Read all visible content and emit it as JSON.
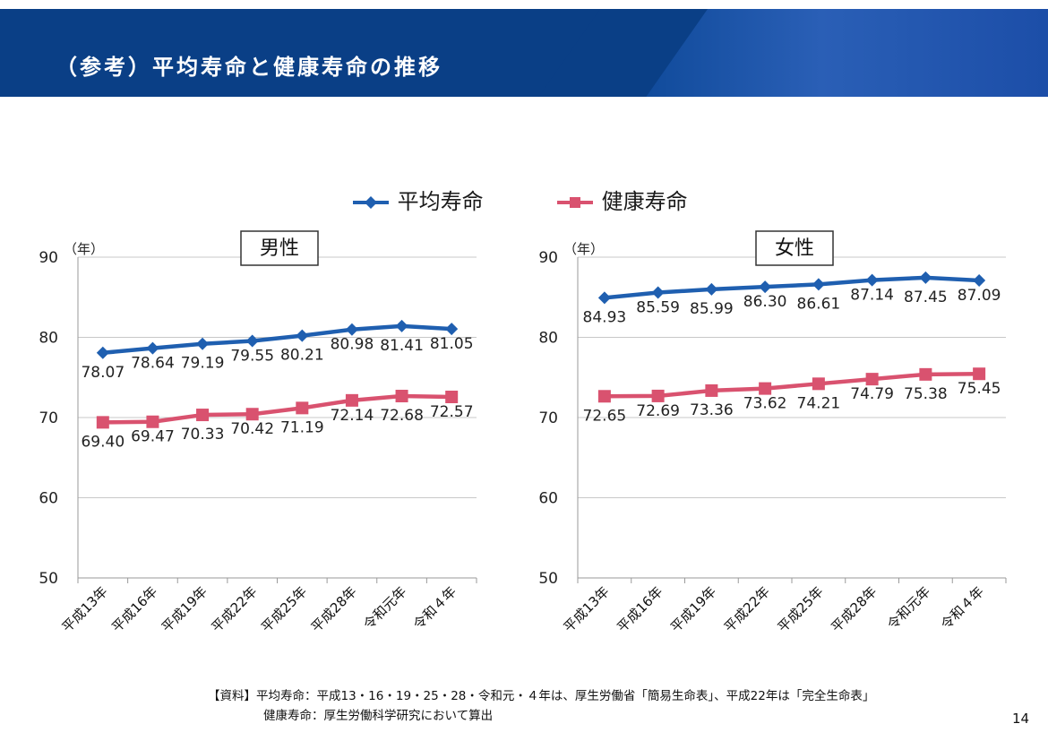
{
  "header": {
    "title": "（参考）平均寿命と健康寿命の推移"
  },
  "legend": {
    "avg_label": "平均寿命",
    "healthy_label": "健康寿命",
    "avg_color": "#1f5fb0",
    "healthy_color": "#d9526f"
  },
  "chart_data": [
    {
      "type": "line",
      "title": "男性",
      "ylabel": "（年）",
      "ylim": [
        50,
        90
      ],
      "yticks": [
        50,
        60,
        70,
        80,
        90
      ],
      "categories": [
        "平成13年",
        "平成16年",
        "平成19年",
        "平成22年",
        "平成25年",
        "平成28年",
        "令和元年",
        "令和４年"
      ],
      "series": [
        {
          "name": "平均寿命",
          "values": [
            78.07,
            78.64,
            79.19,
            79.55,
            80.21,
            80.98,
            81.41,
            81.05
          ],
          "labels": [
            "78.07",
            "78.64",
            "79.19",
            "79.55",
            "80.21",
            "80.98",
            "81.41",
            "81.05"
          ]
        },
        {
          "name": "健康寿命",
          "values": [
            69.4,
            69.47,
            70.33,
            70.42,
            71.19,
            72.14,
            72.68,
            72.57
          ],
          "labels": [
            "69.40",
            "69.47",
            "70.33",
            "70.42",
            "71.19",
            "72.14",
            "72.68",
            "72.57"
          ]
        }
      ]
    },
    {
      "type": "line",
      "title": "女性",
      "ylabel": "（年）",
      "ylim": [
        50,
        90
      ],
      "yticks": [
        50,
        60,
        70,
        80,
        90
      ],
      "categories": [
        "平成13年",
        "平成16年",
        "平成19年",
        "平成22年",
        "平成25年",
        "平成28年",
        "令和元年",
        "令和４年"
      ],
      "series": [
        {
          "name": "平均寿命",
          "values": [
            84.93,
            85.59,
            85.99,
            86.3,
            86.61,
            87.14,
            87.45,
            87.09
          ],
          "labels": [
            "84.93",
            "85.59",
            "85.99",
            "86.30",
            "86.61",
            "87.14",
            "87.45",
            "87.09"
          ]
        },
        {
          "name": "健康寿命",
          "values": [
            72.65,
            72.69,
            73.36,
            73.62,
            74.21,
            74.79,
            75.38,
            75.45
          ],
          "labels": [
            "72.65",
            "72.69",
            "73.36",
            "73.62",
            "74.21",
            "74.79",
            "75.38",
            "75.45"
          ]
        }
      ]
    }
  ],
  "footer": {
    "line1": "【資料】平均寿命：平成13・16・19・25・28・令和元・４年は、厚生労働省「簡易生命表」、平成22年は「完全生命表」",
    "line2": "健康寿命：厚生労働科学研究において算出"
  },
  "page_number": "14"
}
